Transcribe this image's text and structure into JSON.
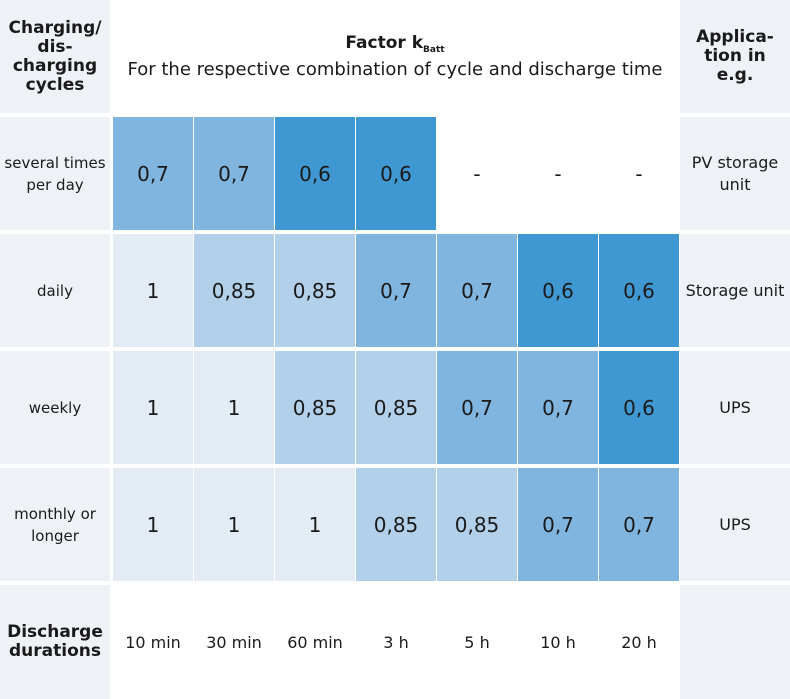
{
  "header": {
    "cycles_label": "Charging/ dis- charging cycles",
    "factor_title": "Factor k",
    "factor_subscript": "Batt",
    "factor_subtitle": "For the respective combination of cycle and discharge time",
    "application_label": "Applica- tion in e.g."
  },
  "durations_label": "Discharge durations",
  "durations": [
    "10 min",
    "30 min",
    "60 min",
    "3 h",
    "5 h",
    "10 h",
    "20 h"
  ],
  "rows": [
    {
      "cycle": "several times per day",
      "values": [
        "0,7",
        "0,7",
        "0,6",
        "0,6",
        "-",
        "-",
        "-"
      ],
      "application": "PV storage unit"
    },
    {
      "cycle": "daily",
      "values": [
        "1",
        "0,85",
        "0,85",
        "0,7",
        "0,7",
        "0,6",
        "0,6"
      ],
      "application": "Storage unit"
    },
    {
      "cycle": "weekly",
      "values": [
        "1",
        "1",
        "0,85",
        "0,85",
        "0,7",
        "0,7",
        "0,6"
      ],
      "application": "UPS"
    },
    {
      "cycle": "monthly or longer",
      "values": [
        "1",
        "1",
        "1",
        "0,85",
        "0,85",
        "0,7",
        "0,7"
      ],
      "application": "UPS"
    }
  ],
  "colors": {
    "factor_1": "#e3ecf5",
    "factor_0_85": "#b3d0ea",
    "factor_0_7": "#80b5e0",
    "factor_0_6": "#4098d2",
    "empty": "#ffffff",
    "label_bg": "#eef2f6"
  }
}
